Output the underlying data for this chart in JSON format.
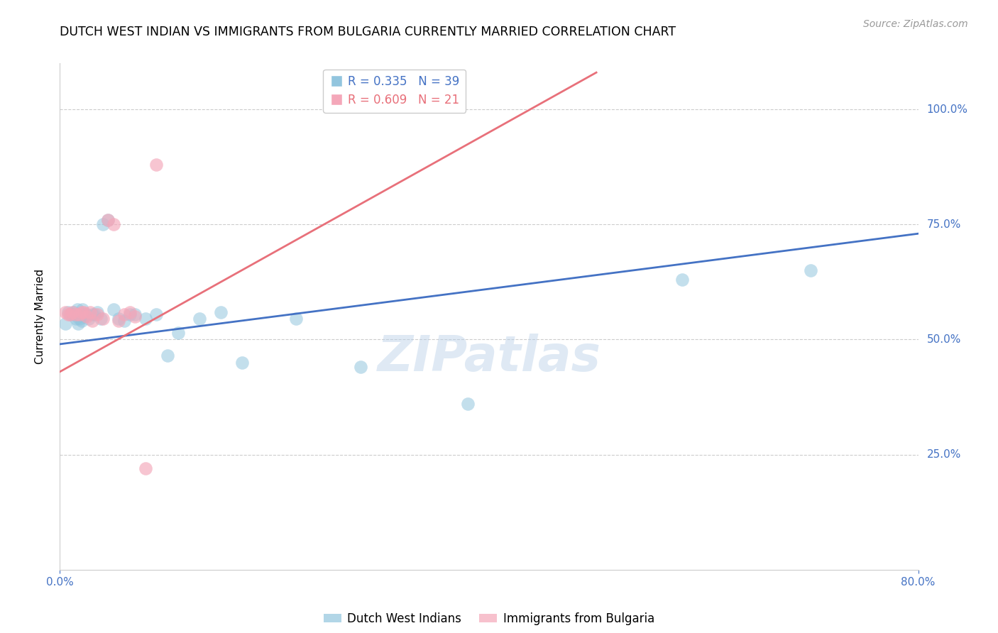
{
  "title": "DUTCH WEST INDIAN VS IMMIGRANTS FROM BULGARIA CURRENTLY MARRIED CORRELATION CHART",
  "source": "Source: ZipAtlas.com",
  "ylabel": "Currently Married",
  "x_min": 0.0,
  "x_max": 0.8,
  "y_min": 0.0,
  "y_max": 1.1,
  "yticks": [
    0.25,
    0.5,
    0.75,
    1.0
  ],
  "ytick_labels": [
    "25.0%",
    "50.0%",
    "75.0%",
    "100.0%"
  ],
  "xticks": [
    0.0,
    0.8
  ],
  "xtick_labels": [
    "0.0%",
    "80.0%"
  ],
  "legend_line1": "R = 0.335   N = 39",
  "legend_line2": "R = 0.609   N = 21",
  "legend2_labels": [
    "Dutch West Indians",
    "Immigrants from Bulgaria"
  ],
  "blue_color": "#92c5de",
  "pink_color": "#f4a7b9",
  "blue_line_color": "#4472c4",
  "pink_line_color": "#e8707a",
  "ytick_color": "#4472c4",
  "xtick_color": "#4472c4",
  "grid_color": "#cccccc",
  "watermark": "ZIPatlas",
  "blue_scatter_x": [
    0.005,
    0.008,
    0.01,
    0.012,
    0.013,
    0.015,
    0.016,
    0.017,
    0.018,
    0.019,
    0.02,
    0.021,
    0.022,
    0.023,
    0.025,
    0.027,
    0.03,
    0.032,
    0.035,
    0.038,
    0.04,
    0.045,
    0.05,
    0.055,
    0.06,
    0.065,
    0.07,
    0.08,
    0.09,
    0.1,
    0.11,
    0.13,
    0.15,
    0.17,
    0.22,
    0.28,
    0.38,
    0.58,
    0.7
  ],
  "blue_scatter_y": [
    0.535,
    0.56,
    0.555,
    0.555,
    0.56,
    0.545,
    0.565,
    0.535,
    0.545,
    0.555,
    0.54,
    0.565,
    0.55,
    0.555,
    0.555,
    0.545,
    0.555,
    0.555,
    0.56,
    0.545,
    0.75,
    0.76,
    0.565,
    0.545,
    0.54,
    0.555,
    0.555,
    0.545,
    0.555,
    0.465,
    0.515,
    0.545,
    0.56,
    0.45,
    0.545,
    0.44,
    0.36,
    0.63,
    0.65
  ],
  "pink_scatter_x": [
    0.005,
    0.008,
    0.01,
    0.012,
    0.015,
    0.018,
    0.02,
    0.022,
    0.025,
    0.028,
    0.03,
    0.035,
    0.04,
    0.045,
    0.05,
    0.055,
    0.06,
    0.065,
    0.07,
    0.08,
    0.09
  ],
  "pink_scatter_y": [
    0.56,
    0.555,
    0.555,
    0.56,
    0.555,
    0.555,
    0.56,
    0.56,
    0.55,
    0.56,
    0.54,
    0.555,
    0.545,
    0.76,
    0.75,
    0.54,
    0.555,
    0.56,
    0.55,
    0.22,
    0.88
  ],
  "blue_line_x": [
    0.0,
    0.8
  ],
  "blue_line_y": [
    0.49,
    0.73
  ],
  "pink_line_x": [
    0.0,
    0.5
  ],
  "pink_line_y": [
    0.43,
    1.08
  ]
}
